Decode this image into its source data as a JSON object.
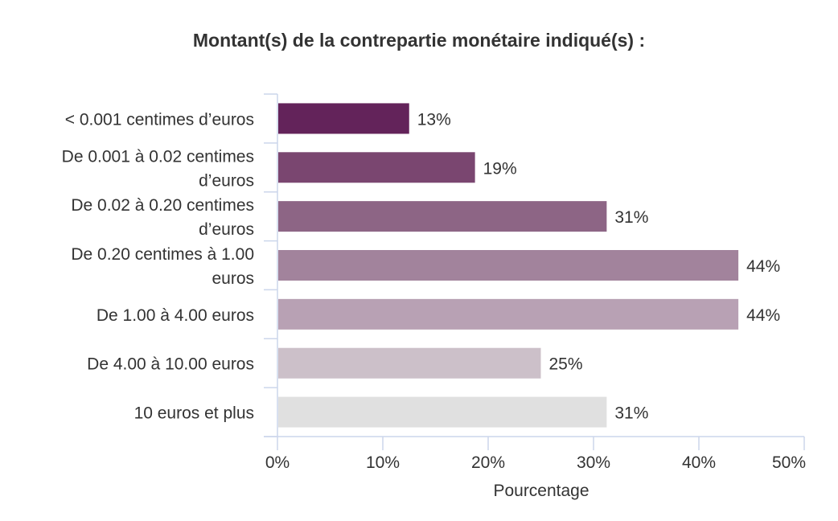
{
  "chart_data": {
    "type": "bar",
    "orientation": "horizontal",
    "title": "Montant(s) de la contrepartie monétaire indiqué(s) :",
    "xlabel": "Pourcentage",
    "ylabel": "",
    "xlim": [
      0,
      50
    ],
    "x_ticks": [
      0,
      10,
      20,
      30,
      40,
      50
    ],
    "x_tick_labels": [
      "0%",
      "10%",
      "20%",
      "30%",
      "40%",
      "50%"
    ],
    "categories": [
      [
        "< 0.001 centimes d’euros"
      ],
      [
        "De 0.001 à 0.02 centimes",
        "d’euros"
      ],
      [
        "De 0.02 à 0.20 centimes",
        "d’euros"
      ],
      [
        "De 0.20 centimes à 1.00",
        "euros"
      ],
      [
        "De 1.00 à 4.00 euros"
      ],
      [
        "De 4.00 à 10.00 euros"
      ],
      [
        "10 euros et plus"
      ]
    ],
    "values": [
      12.5,
      18.75,
      31.25,
      43.75,
      43.75,
      25,
      31.25
    ],
    "value_labels": [
      "13%",
      "19%",
      "31%",
      "44%",
      "44%",
      "25%",
      "31%"
    ],
    "colors": [
      "#63235a",
      "#7a4670",
      "#8d6585",
      "#a2839c",
      "#b8a1b4",
      "#ccc0c9",
      "#e0e0e0"
    ],
    "grid": false,
    "legend": "none"
  }
}
